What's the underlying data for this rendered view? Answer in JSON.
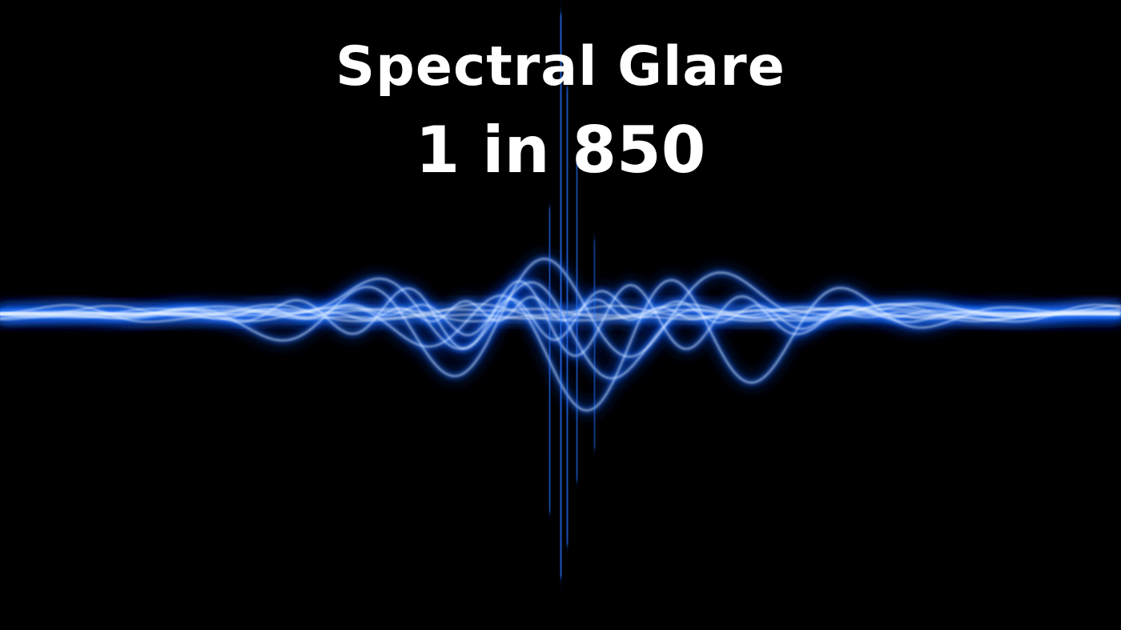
{
  "title": "Spectral Glare",
  "odds": "1 in 850",
  "colors": {
    "background": "#000000",
    "text": "#ffffff",
    "wave_core": "#e8f2ff",
    "wave_glow": "#2a78ff",
    "wave_deep": "#0a3cc8"
  },
  "image": {
    "subject": "glowing blue audio waveform"
  }
}
